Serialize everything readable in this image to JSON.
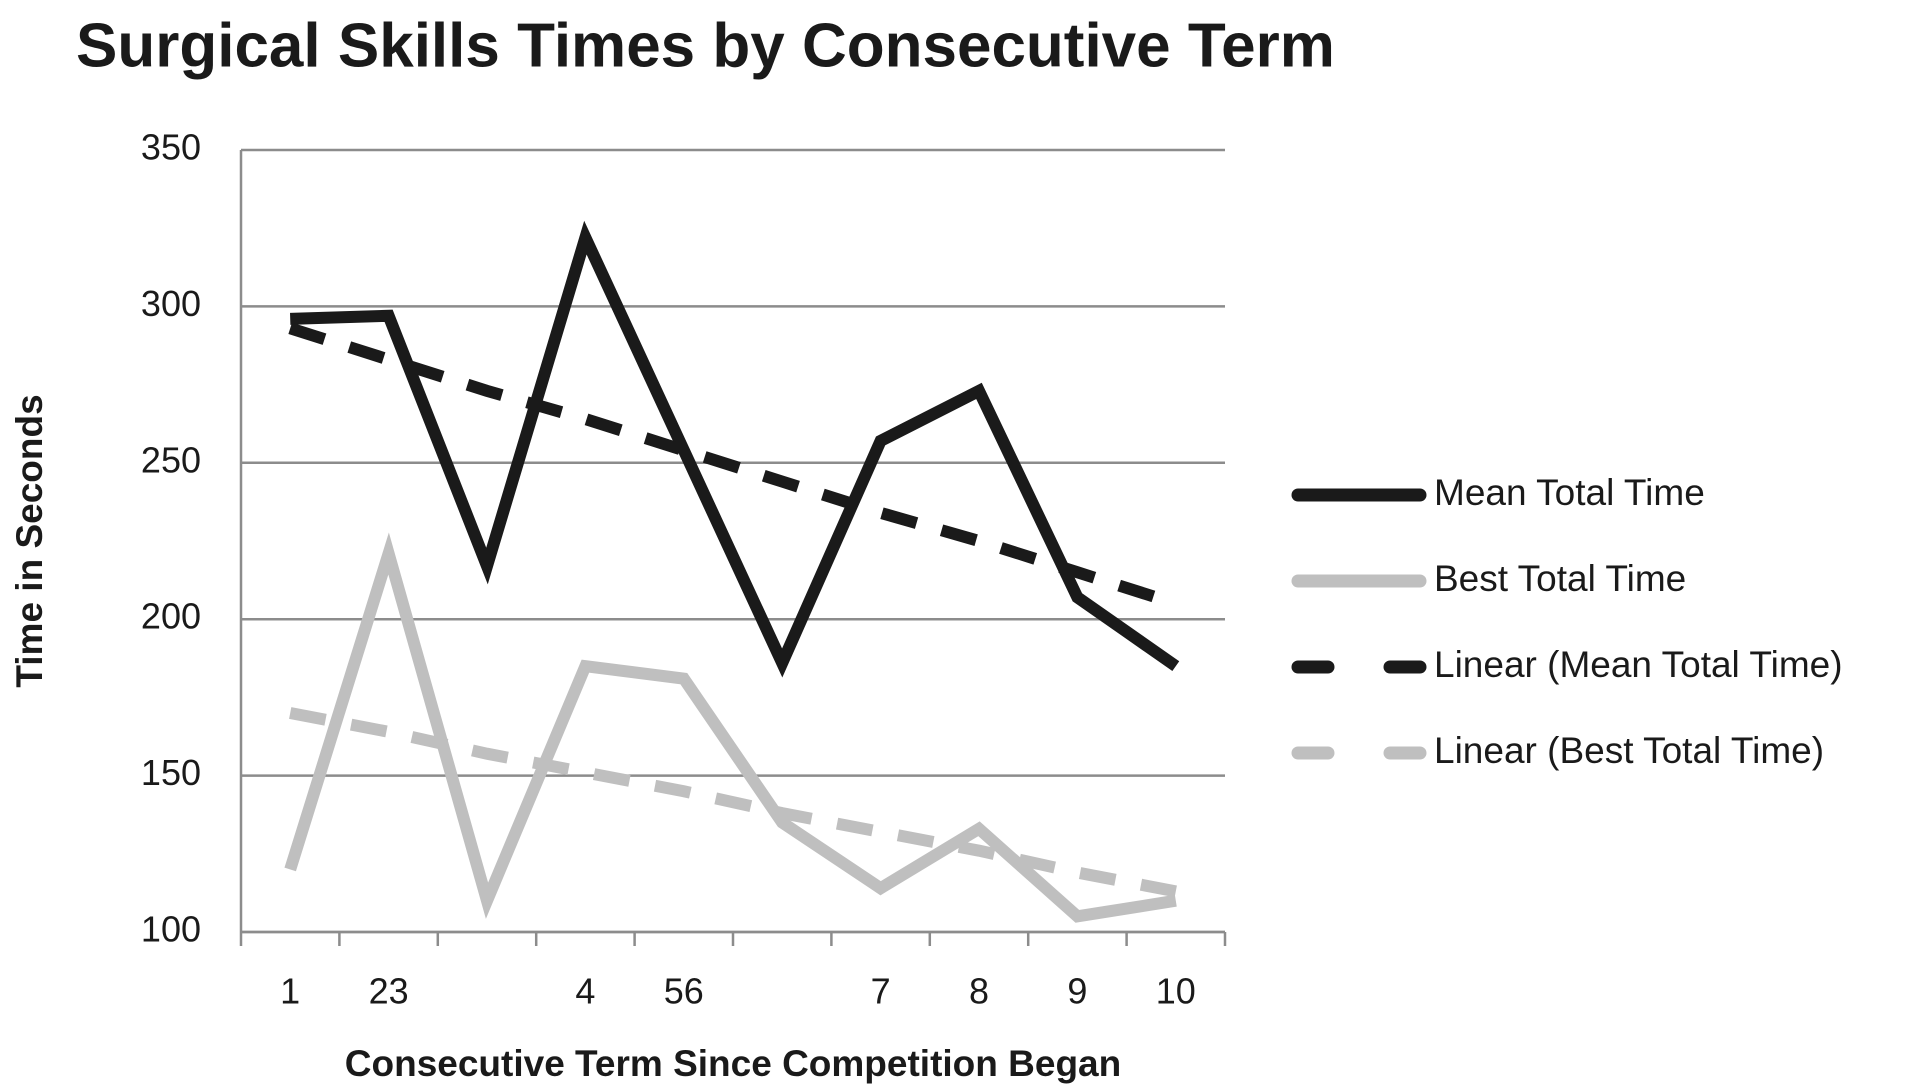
{
  "chart_data": {
    "type": "line",
    "title": "Surgical Skills Times by Consecutive Term",
    "x_label": "Consecutive Term Since Competition Began",
    "y_label": "Time in Seconds",
    "categories": [
      "1",
      "23",
      null,
      "4",
      "56",
      null,
      "7",
      "8",
      "9",
      "10"
    ],
    "series": [
      {
        "name": "Mean Total Time",
        "color": "#1a1a1a",
        "dashed": false,
        "values": [
          296,
          297,
          217,
          322,
          254,
          186,
          257,
          273,
          207,
          185
        ]
      },
      {
        "name": "Best Total Time",
        "color": "#bfbfbf",
        "dashed": false,
        "values": [
          120,
          221,
          110,
          185,
          181,
          135,
          114,
          133,
          105,
          110
        ]
      },
      {
        "name": "Linear (Mean Total Time)",
        "color": "#1a1a1a",
        "dashed": true,
        "values": [
          293,
          283,
          273,
          264,
          254,
          244,
          234,
          225,
          215,
          205
        ]
      },
      {
        "name": "Linear (Best Total Time)",
        "color": "#bfbfbf",
        "dashed": true,
        "values": [
          170,
          164,
          157,
          151,
          145,
          138,
          132,
          126,
          119,
          113
        ]
      }
    ],
    "ylim": [
      100,
      350
    ],
    "yticks": [
      100,
      150,
      200,
      250,
      300,
      350
    ],
    "grid": true,
    "legend": "right"
  }
}
